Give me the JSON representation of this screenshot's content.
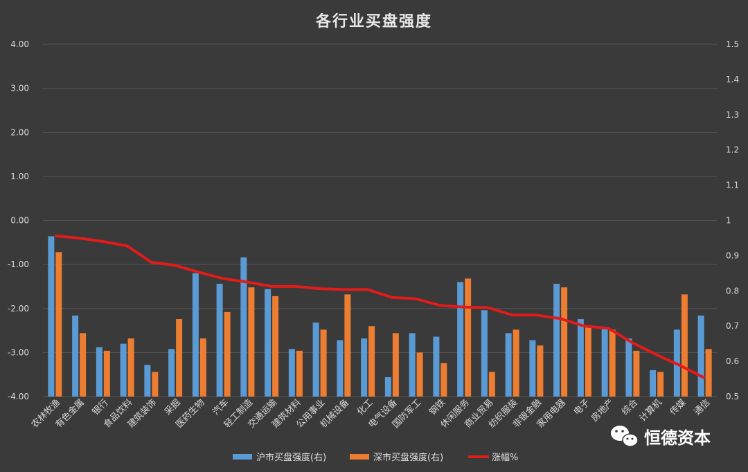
{
  "chart_data": {
    "type": "bar",
    "title": "各行业买盘强度",
    "categories": [
      "农林牧渔",
      "有色金属",
      "银行",
      "食品饮料",
      "建筑装饰",
      "采掘",
      "医药生物",
      "汽车",
      "轻工制造",
      "交通运输",
      "建筑材料",
      "公用事业",
      "机械设备",
      "化工",
      "电气设备",
      "国防军工",
      "钢铁",
      "休闲服务",
      "商业贸易",
      "纺织服装",
      "非银金融",
      "家用电器",
      "电子",
      "房地产",
      "综合",
      "计算机",
      "传媒",
      "通信"
    ],
    "series": [
      {
        "name": "沪市买盘强度(右)",
        "type": "bar",
        "axis": "right",
        "color": "#5b9bd5",
        "values": [
          0.955,
          0.73,
          0.64,
          0.65,
          0.59,
          0.635,
          0.85,
          0.82,
          0.895,
          0.805,
          0.635,
          0.71,
          0.66,
          0.665,
          0.555,
          0.68,
          0.67,
          0.825,
          0.745,
          0.68,
          0.66,
          0.82,
          0.72,
          0.695,
          0.665,
          0.575,
          0.69,
          0.73
        ]
      },
      {
        "name": "深市买盘强度(右)",
        "type": "bar",
        "axis": "right",
        "color": "#ed7d31",
        "values": [
          0.91,
          0.68,
          0.63,
          0.665,
          0.57,
          0.72,
          0.665,
          0.74,
          0.81,
          0.785,
          0.63,
          0.69,
          0.79,
          0.7,
          0.68,
          0.625,
          0.595,
          0.835,
          0.57,
          0.69,
          0.645,
          0.81,
          0.7,
          0.69,
          0.63,
          0.57,
          0.79,
          0.635
        ]
      },
      {
        "name": "涨幅%",
        "type": "line",
        "axis": "left",
        "color": "#e21b1b",
        "values": [
          -0.35,
          -0.4,
          -0.48,
          -0.58,
          -0.95,
          -1.02,
          -1.18,
          -1.32,
          -1.4,
          -1.5,
          -1.5,
          -1.55,
          -1.57,
          -1.57,
          -1.75,
          -1.78,
          -1.93,
          -1.97,
          -1.98,
          -2.15,
          -2.15,
          -2.23,
          -2.4,
          -2.45,
          -2.78,
          -3.05,
          -3.3,
          -3.58
        ]
      }
    ],
    "y_left": {
      "min": -4,
      "max": 4,
      "step": 1,
      "ticks": [
        "4.00",
        "3.00",
        "2.00",
        "1.00",
        "0.00",
        "-1.00",
        "-2.00",
        "-3.00",
        "-4.00"
      ]
    },
    "y_right": {
      "min": 0.5,
      "max": 1.5,
      "step": 0.1,
      "ticks": [
        "1.5",
        "1.4",
        "1.3",
        "1.2",
        "1.1",
        "1",
        "0.9",
        "0.8",
        "0.7",
        "0.6",
        "0.5"
      ]
    },
    "grid": true,
    "legend_position": "bottom"
  },
  "watermark": {
    "text": "恒德资本",
    "icon": "wechat-icon"
  }
}
